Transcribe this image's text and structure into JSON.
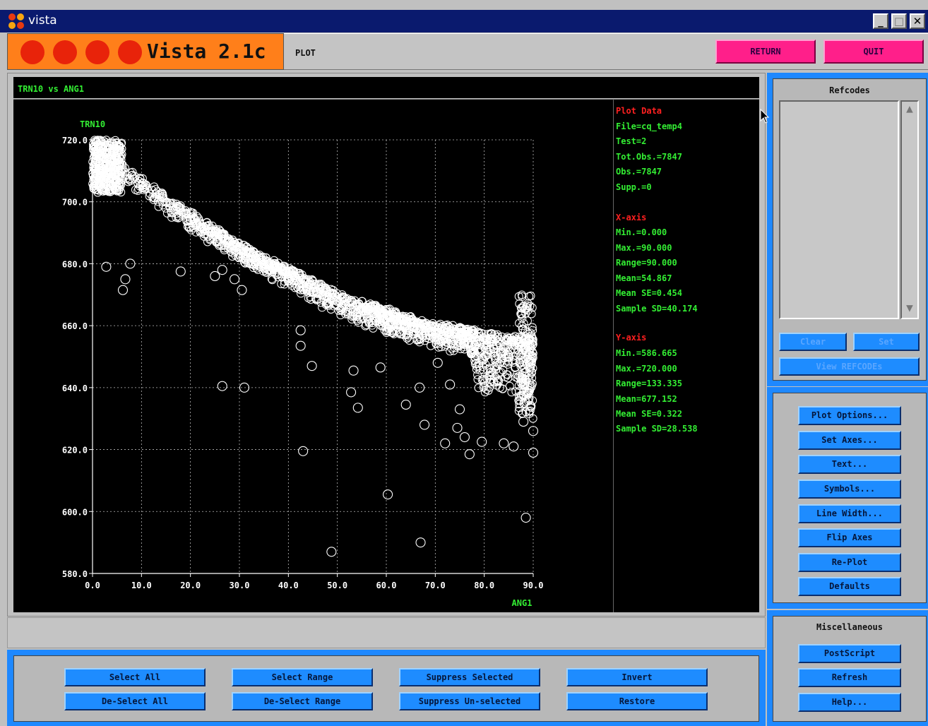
{
  "window": {
    "title": "vista",
    "min_label": "_",
    "max_label": "□",
    "close_label": "✕"
  },
  "header": {
    "app_name": "Vista 2.1c",
    "mode": "PLOT",
    "return_label": "RETURN",
    "quit_label": "QUIT",
    "logo_color": "#ff7f1a",
    "accent_button_color": "#ff1f8a"
  },
  "plot": {
    "title": "TRN10 vs ANG1"
  },
  "info": {
    "plot_data_heading": "Plot Data",
    "file": "File=cq_temp4",
    "test": "Test=2",
    "tot_obs": "Tot.Obs.=7847",
    "obs": "Obs.=7847",
    "supp": "Supp.=0",
    "x_heading": "X-axis",
    "x_min": "Min.=0.000",
    "x_max": "Max.=90.000",
    "x_range": "Range=90.000",
    "x_mean": "Mean=54.867",
    "x_mean_se": "Mean SE=0.454",
    "x_sd": "Sample SD=40.174",
    "y_heading": "Y-axis",
    "y_min": "Min.=586.665",
    "y_max": "Max.=720.000",
    "y_range": "Range=133.335",
    "y_mean": "Mean=677.152",
    "y_mean_se": "Mean SE=0.322",
    "y_sd": "Sample SD=28.538"
  },
  "refcodes": {
    "heading": "Refcodes",
    "clear_label": "Clear",
    "set_label": "Set",
    "view_label": "View REFCODEs"
  },
  "options": {
    "plot_options": "Plot Options...",
    "set_axes": "Set Axes...",
    "text": "Text...",
    "symbols": "Symbols...",
    "line_width": "Line Width...",
    "flip_axes": "Flip Axes",
    "re_plot": "Re-Plot",
    "defaults": "Defaults"
  },
  "misc": {
    "heading": "Miscellaneous",
    "postscript": "PostScript",
    "refresh": "Refresh",
    "help": "Help..."
  },
  "selection": {
    "select_all": "Select All",
    "deselect_all": "De-Select All",
    "select_range": "Select Range",
    "deselect_range": "De-Select Range",
    "suppress_selected": "Suppress Selected",
    "suppress_unselected": "Suppress Un-selected",
    "invert": "Invert",
    "restore": "Restore"
  },
  "chart_data": {
    "type": "scatter",
    "title": "TRN10 vs ANG1",
    "xlabel": "ANG1",
    "ylabel": "TRN10",
    "xlim": [
      0,
      90
    ],
    "ylim": [
      580,
      720
    ],
    "xticks": [
      0,
      10,
      20,
      30,
      40,
      50,
      60,
      70,
      80,
      90
    ],
    "xtick_labels": [
      "0.0",
      "10.0",
      "20.0",
      "30.0",
      "40.0",
      "50.0",
      "60.0",
      "70.0",
      "80.0",
      "90.0"
    ],
    "yticks": [
      580,
      600,
      620,
      640,
      660,
      680,
      700,
      720
    ],
    "ytick_labels": [
      "580.0",
      "600.0",
      "620.0",
      "640.0",
      "660.0",
      "680.0",
      "700.0",
      "720.0"
    ],
    "grid": true,
    "marker": "open-circle",
    "marker_color": "#ffffff",
    "label_color": "#33ee33",
    "trend": {
      "x": [
        0,
        5,
        10,
        15,
        20,
        25,
        30,
        35,
        40,
        45,
        50,
        55,
        60,
        65,
        70,
        75,
        80,
        85,
        90
      ],
      "y": [
        718,
        713,
        707,
        701,
        696,
        691,
        686,
        682,
        678,
        674,
        670,
        667,
        665,
        662,
        660,
        659,
        657,
        656,
        656
      ]
    },
    "outliers": [
      [
        2.8,
        679
      ],
      [
        6.2,
        671.5
      ],
      [
        6.7,
        675
      ],
      [
        7.7,
        680
      ],
      [
        18,
        677.5
      ],
      [
        25,
        676
      ],
      [
        26.5,
        678
      ],
      [
        29,
        675
      ],
      [
        30.5,
        671.5
      ],
      [
        42.5,
        658.5
      ],
      [
        42.5,
        653.5
      ],
      [
        44.8,
        647
      ],
      [
        53.3,
        645.5
      ],
      [
        52.8,
        638.5
      ],
      [
        54.2,
        633.5
      ],
      [
        58.8,
        646.5
      ],
      [
        64,
        634.5
      ],
      [
        66.8,
        640
      ],
      [
        67.8,
        628
      ],
      [
        26.5,
        640.5
      ],
      [
        31,
        640
      ],
      [
        43,
        619.5
      ],
      [
        60.3,
        605.5
      ],
      [
        48.8,
        587
      ],
      [
        67,
        590
      ],
      [
        77,
        618.5
      ],
      [
        88.5,
        598
      ],
      [
        90,
        619
      ],
      [
        90,
        626
      ],
      [
        76,
        624
      ],
      [
        79.5,
        622.5
      ],
      [
        84,
        622
      ],
      [
        86,
        621
      ],
      [
        88,
        629
      ],
      [
        72,
        622
      ],
      [
        74.5,
        627
      ],
      [
        75,
        633
      ],
      [
        70.5,
        648
      ],
      [
        73,
        641
      ]
    ]
  }
}
